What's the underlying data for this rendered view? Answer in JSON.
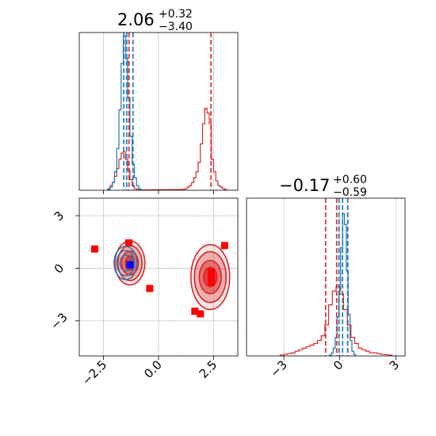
{
  "colors": {
    "series_a": "#1f77b4",
    "series_b": "#d62728",
    "grid": "#c8c8c8",
    "marker_red": "#ff0000",
    "marker_blue": "#0000ff"
  },
  "titles": [
    {
      "value": "2.06",
      "plus": "+0.32",
      "minus": "−3.40"
    },
    {
      "value": "−0.17",
      "plus": "+0.60",
      "minus": "−0.59"
    }
  ],
  "chart_data": [
    {
      "panel": "marginal-top",
      "type": "area",
      "grid": true,
      "xlim": [
        -3.6,
        3.6
      ],
      "x_ticks": [
        -2.5,
        0.0,
        2.5
      ],
      "tick_labels_shown": false,
      "series": [
        {
          "color": "#1f77b4",
          "centers": [
            -2.25,
            -2.15,
            -2.05,
            -1.95,
            -1.85,
            -1.75,
            -1.65,
            -1.55,
            -1.45,
            -1.35,
            -1.25,
            -1.15,
            -1.05,
            -0.95,
            -0.85,
            -0.75
          ],
          "counts": [
            0.005,
            0.02,
            0.05,
            0.12,
            0.27,
            0.52,
            0.82,
            1.0,
            0.85,
            0.6,
            0.35,
            0.17,
            0.08,
            0.03,
            0.01,
            0.003
          ],
          "quantile_lines": [
            -1.58,
            -1.44,
            -1.16
          ]
        },
        {
          "color": "#d62728",
          "centers": [
            -2.25,
            -2.15,
            -2.05,
            -1.95,
            -1.85,
            -1.75,
            -1.65,
            -1.55,
            -1.45,
            -1.35,
            -1.25,
            -1.15,
            -1.05,
            -0.95,
            -0.85,
            1.15,
            1.25,
            1.35,
            1.45,
            1.55,
            1.65,
            1.75,
            1.85,
            1.95,
            2.05,
            2.15,
            2.25,
            2.35,
            2.45,
            2.55,
            2.65,
            2.75,
            2.85,
            2.95,
            3.05
          ],
          "counts": [
            0.01,
            0.03,
            0.05,
            0.09,
            0.14,
            0.2,
            0.24,
            0.25,
            0.2,
            0.13,
            0.07,
            0.03,
            0.01,
            0.005,
            0.002,
            0.005,
            0.01,
            0.02,
            0.03,
            0.05,
            0.08,
            0.12,
            0.18,
            0.3,
            0.43,
            0.53,
            0.5,
            0.43,
            0.2,
            0.12,
            0.06,
            0.03,
            0.02,
            0.01,
            0.005
          ],
          "quantile_lines": [
            -1.34,
            2.38
          ]
        }
      ]
    },
    {
      "panel": "joint",
      "type": "scatter",
      "grid": true,
      "xlim": [
        -3.6,
        3.6
      ],
      "ylim": [
        -5,
        4
      ],
      "x_ticks": [
        -2.5,
        0.0,
        2.5
      ],
      "x_tick_labels": [
        "−2.5",
        "0.0",
        "2.5"
      ],
      "y_ticks": [
        -3,
        0,
        3
      ],
      "y_tick_labels": [
        "−3",
        "0",
        "3"
      ],
      "density_a": {
        "color": "#1f77b4",
        "center": [
          -1.5,
          0.3
        ],
        "levels": [
          [
            0.25,
            0.45
          ],
          [
            0.4,
            0.72
          ],
          [
            0.52,
            0.95
          ]
        ]
      },
      "density_b": {
        "color": "#d62728",
        "modes": [
          {
            "center": [
              -1.3,
              0.3
            ],
            "levels": [
              [
                0.2,
                0.4
              ],
              [
                0.38,
                0.68
              ],
              [
                0.55,
                1.0
              ],
              [
                0.68,
                1.25
              ]
            ]
          },
          {
            "center": [
              2.35,
              -0.5
            ],
            "levels": [
              [
                0.3,
                0.55
              ],
              [
                0.5,
                0.95
              ],
              [
                0.72,
                1.45
              ],
              [
                0.88,
                1.85
              ]
            ]
          }
        ]
      },
      "points_red": [
        [
          -2.9,
          1.1
        ],
        [
          -1.35,
          1.45
        ],
        [
          -0.4,
          -1.15
        ],
        [
          1.65,
          -2.45
        ],
        [
          1.9,
          -2.6
        ],
        [
          2.4,
          -0.2
        ],
        [
          2.4,
          -0.5
        ],
        [
          2.4,
          -0.8
        ],
        [
          3.0,
          1.3
        ]
      ],
      "points_blue": [
        [
          -1.3,
          0.2
        ]
      ]
    },
    {
      "panel": "marginal-right",
      "type": "area",
      "grid": true,
      "xlim": [
        -5,
        3.5
      ],
      "x_ticks": [
        -3,
        0,
        3
      ],
      "x_tick_labels": [
        "−3",
        "0",
        "3"
      ],
      "series": [
        {
          "color": "#1f77b4",
          "centers": [
            -0.5,
            -0.4,
            -0.3,
            -0.2,
            -0.1,
            0.0,
            0.1,
            0.2,
            0.3,
            0.4,
            0.5,
            0.6,
            0.7,
            0.8
          ],
          "counts": [
            0.005,
            0.02,
            0.05,
            0.12,
            0.25,
            0.42,
            0.7,
            0.92,
            0.85,
            0.55,
            0.27,
            0.1,
            0.03,
            0.01
          ],
          "quantile_lines": [
            -0.05,
            0.15,
            0.42
          ]
        },
        {
          "color": "#d62728",
          "centers": [
            -3.1,
            -2.9,
            -2.7,
            -2.5,
            -2.3,
            -2.1,
            -1.9,
            -1.7,
            -1.5,
            -1.3,
            -1.1,
            -0.9,
            -0.7,
            -0.5,
            -0.3,
            -0.1,
            0.1,
            0.3,
            0.5,
            0.7,
            0.9,
            1.1,
            1.3,
            1.5,
            1.7,
            1.9,
            2.1,
            2.3,
            2.5,
            2.7
          ],
          "counts": [
            0.005,
            0.01,
            0.015,
            0.02,
            0.03,
            0.04,
            0.05,
            0.06,
            0.07,
            0.08,
            0.1,
            0.13,
            0.2,
            0.33,
            0.42,
            0.45,
            0.4,
            0.3,
            0.2,
            0.12,
            0.08,
            0.05,
            0.04,
            0.03,
            0.02,
            0.02,
            0.015,
            0.01,
            0.008,
            0.005
          ],
          "quantile_lines": [
            -0.76,
            -0.17,
            0.43
          ]
        }
      ]
    }
  ]
}
